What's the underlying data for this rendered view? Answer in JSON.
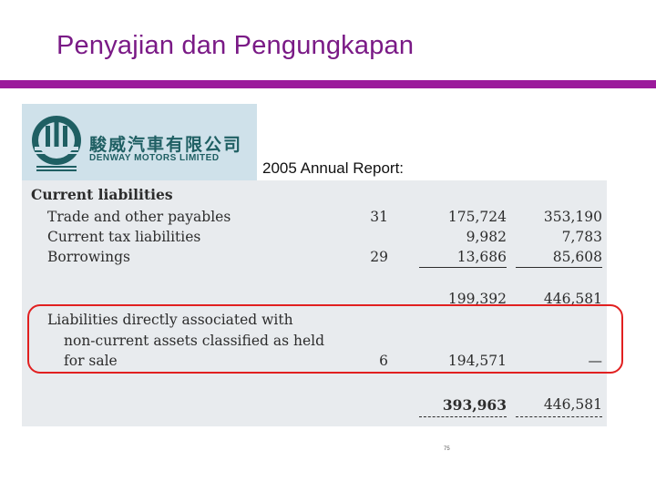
{
  "slide": {
    "title": "Penyajian dan Pengungkapan",
    "report_label": "2005 Annual Report:",
    "page_number": "75"
  },
  "logo": {
    "chinese_name": "駿威汽車有限公司",
    "english_name": "DENWAY MOTORS LIMITED"
  },
  "table": {
    "section_heading": "Current liabilities",
    "rows": [
      {
        "label": "Trade and other payables",
        "note": "31",
        "col1": "175,724",
        "col2": "353,190"
      },
      {
        "label": "Current tax liabilities",
        "note": "",
        "col1": "9,982",
        "col2": "7,783"
      },
      {
        "label": "Borrowings",
        "note": "29",
        "col1": "13,686",
        "col2": "85,608"
      }
    ],
    "subtotal": {
      "col1": "199,392",
      "col2": "446,581"
    },
    "held_for_sale": {
      "label_line1": "Liabilities directly associated with",
      "label_line2": "non-current assets classified as held",
      "label_line3": "for sale",
      "note": "6",
      "col1": "194,571",
      "col2": "—"
    },
    "total": {
      "col1": "393,963",
      "col2": "446,581"
    }
  },
  "colors": {
    "title": "#7a1a86",
    "rule": "#9b1a9b",
    "highlight": "#e12020",
    "logo_bg": "#cfe1ea",
    "logo_ink": "#1f5f63",
    "panel_bg": "#e8ebee"
  }
}
